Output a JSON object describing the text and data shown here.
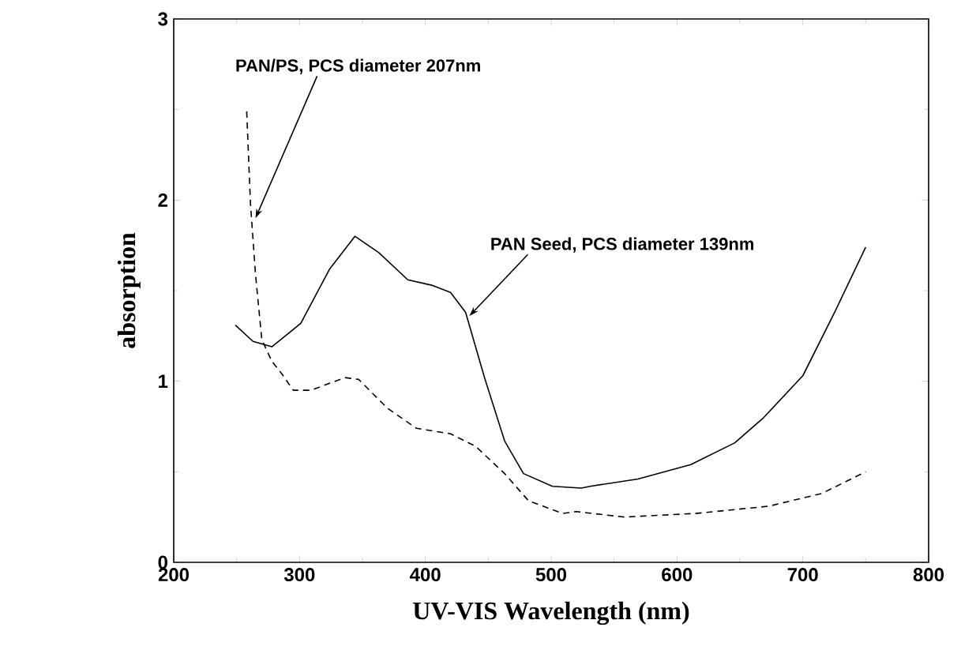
{
  "chart_data": {
    "type": "line",
    "xlabel": "UV-VIS Wavelength (nm)",
    "ylabel": "absorption",
    "xlim": [
      200,
      800
    ],
    "ylim": [
      0,
      3
    ],
    "xticks": [
      200,
      300,
      400,
      500,
      600,
      700,
      800
    ],
    "yticks": [
      0,
      1,
      2,
      3
    ],
    "grid": false,
    "marker": "none",
    "series": [
      {
        "color": "#000000",
        "line_style": "solid",
        "x": [
          249,
          263,
          278,
          301,
          324,
          344,
          363,
          386,
          405,
          420,
          432,
          447,
          463,
          478,
          501,
          524,
          531,
          569,
          611,
          646,
          669,
          700,
          726,
          750
        ],
        "values": [
          1.31,
          1.22,
          1.19,
          1.32,
          1.62,
          1.8,
          1.71,
          1.56,
          1.53,
          1.49,
          1.38,
          1.02,
          0.67,
          0.49,
          0.42,
          0.41,
          0.42,
          0.46,
          0.54,
          0.66,
          0.8,
          1.03,
          1.39,
          1.74
        ]
      },
      {
        "color": "#000000",
        "line_style": "dashed",
        "x": [
          258,
          261,
          265,
          270,
          278,
          286,
          295,
          309,
          336,
          347,
          370,
          393,
          420,
          440,
          463,
          482,
          509,
          520,
          558,
          615,
          673,
          715,
          750
        ],
        "values": [
          2.49,
          1.98,
          1.59,
          1.23,
          1.11,
          1.04,
          0.95,
          0.95,
          1.02,
          1.01,
          0.85,
          0.74,
          0.71,
          0.64,
          0.49,
          0.34,
          0.27,
          0.28,
          0.25,
          0.27,
          0.31,
          0.38,
          0.5
        ]
      }
    ],
    "annotations": [
      {
        "text": "PAN/PS, PCS diameter 207nm",
        "x": 265,
        "y": 1.9
      },
      {
        "text": "PAN Seed, PCS diameter 139nm",
        "x": 435,
        "y": 1.36
      }
    ]
  }
}
